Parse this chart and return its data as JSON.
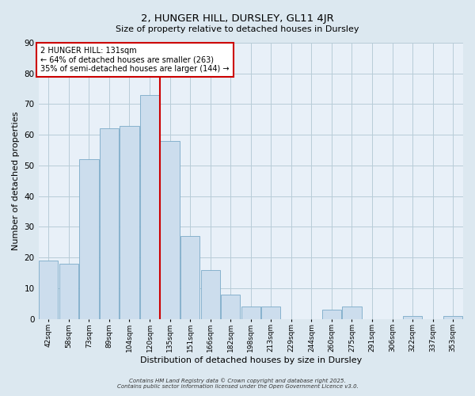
{
  "title": "2, HUNGER HILL, DURSLEY, GL11 4JR",
  "subtitle": "Size of property relative to detached houses in Dursley",
  "xlabel": "Distribution of detached houses by size in Dursley",
  "ylabel": "Number of detached properties",
  "bar_labels": [
    "42sqm",
    "58sqm",
    "73sqm",
    "89sqm",
    "104sqm",
    "120sqm",
    "135sqm",
    "151sqm",
    "166sqm",
    "182sqm",
    "198sqm",
    "213sqm",
    "229sqm",
    "244sqm",
    "260sqm",
    "275sqm",
    "291sqm",
    "306sqm",
    "322sqm",
    "337sqm",
    "353sqm"
  ],
  "bar_values": [
    19,
    18,
    52,
    62,
    63,
    73,
    58,
    27,
    16,
    8,
    4,
    4,
    0,
    0,
    3,
    4,
    0,
    0,
    1,
    0,
    1
  ],
  "bar_color": "#ccdded",
  "bar_edge_color": "#7aaac8",
  "ylim": [
    0,
    90
  ],
  "yticks": [
    0,
    10,
    20,
    30,
    40,
    50,
    60,
    70,
    80,
    90
  ],
  "vline_color": "#cc0000",
  "annotation_title": "2 HUNGER HILL: 131sqm",
  "annotation_line1": "← 64% of detached houses are smaller (263)",
  "annotation_line2": "35% of semi-detached houses are larger (144) →",
  "annotation_box_color": "#ffffff",
  "annotation_box_edge": "#cc0000",
  "footer1": "Contains HM Land Registry data © Crown copyright and database right 2025.",
  "footer2": "Contains public sector information licensed under the Open Government Licence v3.0.",
  "bg_color": "#dce8f0",
  "plot_bg_color": "#e8f0f8",
  "grid_color": "#b8ccd8"
}
